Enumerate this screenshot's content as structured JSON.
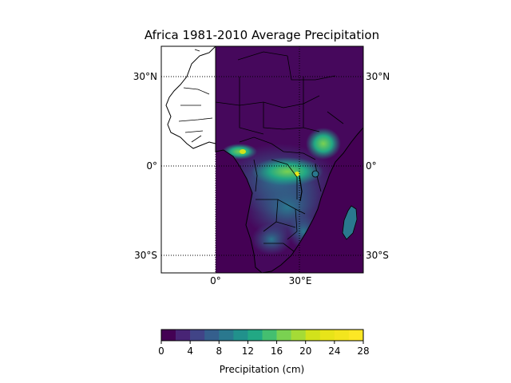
{
  "title": "Africa 1981-2010 Average Precipitation",
  "map": {
    "lat_labels": [
      "30°N",
      "0°",
      "30°S"
    ],
    "lon_labels": [
      "0°",
      "30°E"
    ],
    "lon_range": [
      -18,
      52
    ],
    "lat_range": [
      -37,
      40
    ],
    "colors": {
      "low": "#440154",
      "mid": "#238a8d",
      "high": "#fde725",
      "border": "#000000",
      "graticule": "#000000"
    }
  },
  "colorbar": {
    "label": "Precipitation (cm)",
    "ticks": [
      "0",
      "4",
      "8",
      "12",
      "16",
      "20",
      "24",
      "28"
    ],
    "levels": [
      0,
      2,
      4,
      6,
      8,
      10,
      12,
      14,
      16,
      18,
      20,
      22,
      24,
      26,
      28
    ],
    "colors": [
      "#440154",
      "#482475",
      "#414487",
      "#355f8d",
      "#2a788e",
      "#21918c",
      "#22a884",
      "#44bf70",
      "#7ad151",
      "#a5db36",
      "#d2e21b",
      "#e8e419",
      "#f3e51e",
      "#fde725"
    ]
  }
}
